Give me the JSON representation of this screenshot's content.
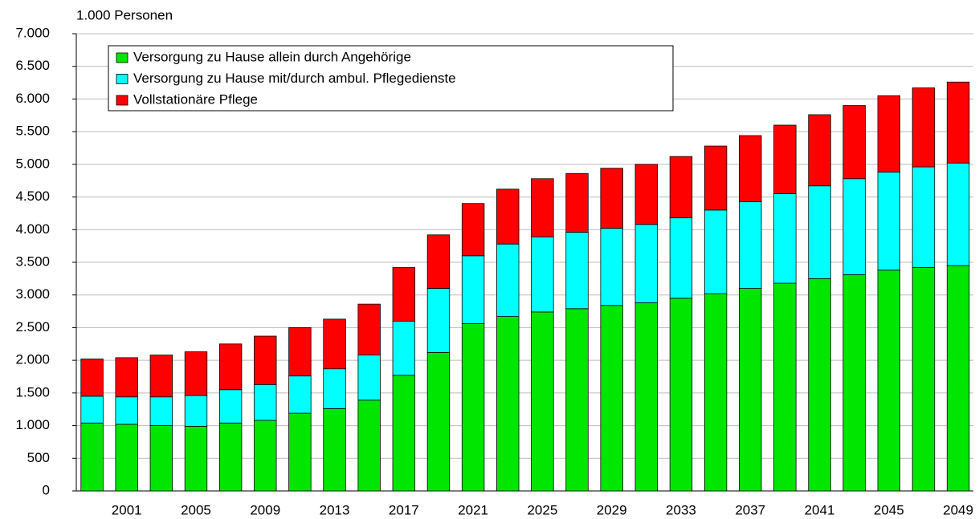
{
  "chart_data": {
    "type": "stacked_bar",
    "title": "1.000 Personen",
    "categories": [
      null,
      "2001",
      null,
      "2005",
      null,
      "2009",
      null,
      "2013",
      null,
      "2017",
      null,
      "2021",
      null,
      "2025",
      null,
      "2029",
      null,
      "2033",
      null,
      "2037",
      null,
      "2041",
      null,
      "2045",
      null,
      "2049"
    ],
    "series": [
      {
        "name": "Versorgung zu Hause allein durch Angehörige",
        "color": "#00e600",
        "values": [
          1040,
          1020,
          1000,
          990,
          1040,
          1080,
          1190,
          1260,
          1390,
          1770,
          2120,
          2560,
          2670,
          2740,
          2790,
          2840,
          2880,
          2950,
          3020,
          3100,
          3180,
          3250,
          3310,
          3380,
          3420,
          3450
        ]
      },
      {
        "name": "Versorgung zu Hause mit/durch ambul. Pflegedienste",
        "color": "#00ffff",
        "values": [
          410,
          420,
          440,
          470,
          510,
          550,
          570,
          610,
          690,
          830,
          980,
          1040,
          1110,
          1150,
          1170,
          1180,
          1200,
          1230,
          1280,
          1330,
          1370,
          1420,
          1470,
          1500,
          1540,
          1570
        ]
      },
      {
        "name": "Vollstationäre Pflege",
        "color": "#ff0000",
        "values": [
          570,
          600,
          640,
          670,
          700,
          740,
          740,
          760,
          780,
          820,
          820,
          800,
          840,
          890,
          900,
          920,
          920,
          940,
          980,
          1010,
          1050,
          1090,
          1120,
          1170,
          1210,
          1240
        ]
      }
    ],
    "ylim": [
      0,
      7000
    ],
    "yticks": [
      0,
      500,
      {
        "value": 1000,
        "label": "1.000"
      },
      {
        "value": 1500,
        "label": "1.500"
      },
      {
        "value": 2000,
        "label": "2.000"
      },
      {
        "value": 2500,
        "label": "2.500"
      },
      {
        "value": 3000,
        "label": "3.000"
      },
      {
        "value": 3500,
        "label": "3.500"
      },
      {
        "value": 4000,
        "label": "4.000"
      },
      {
        "value": 4500,
        "label": "4.500"
      },
      {
        "value": 5000,
        "label": "5.000"
      },
      {
        "value": 5500,
        "label": "5.500"
      },
      {
        "value": 6000,
        "label": "6.000"
      },
      {
        "value": 6500,
        "label": "6.500"
      },
      {
        "value": 7000,
        "label": "7.000"
      }
    ],
    "grid": true,
    "legend": "top-left"
  }
}
